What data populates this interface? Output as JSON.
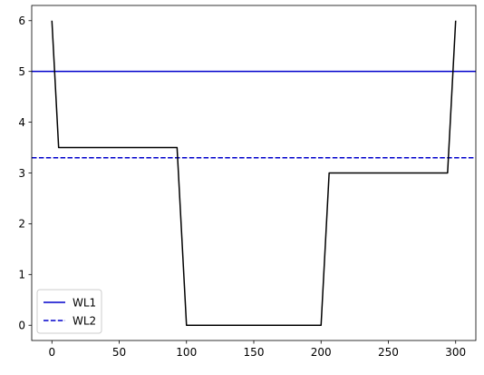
{
  "chart_data": {
    "type": "line",
    "title": "",
    "xlabel": "",
    "ylabel": "",
    "xlim": [
      -15,
      315
    ],
    "ylim": [
      -0.3,
      6.3
    ],
    "x_ticks": [
      0,
      50,
      100,
      150,
      200,
      250,
      300
    ],
    "y_ticks": [
      0,
      1,
      2,
      3,
      4,
      5,
      6
    ],
    "grid": false,
    "legend_position": "lower-left",
    "series": [
      {
        "color": "#000000",
        "style": "solid",
        "x": [
          0,
          5,
          93,
          100,
          200,
          206,
          294,
          300
        ],
        "y": [
          6,
          3.5,
          3.5,
          0,
          0,
          3,
          3,
          6
        ]
      }
    ],
    "hlines": [
      {
        "name": "WL1",
        "y": 5.0,
        "color": "#0000cc",
        "style": "solid"
      },
      {
        "name": "WL2",
        "y": 3.3,
        "color": "#0000cc",
        "style": "dashed"
      }
    ]
  }
}
